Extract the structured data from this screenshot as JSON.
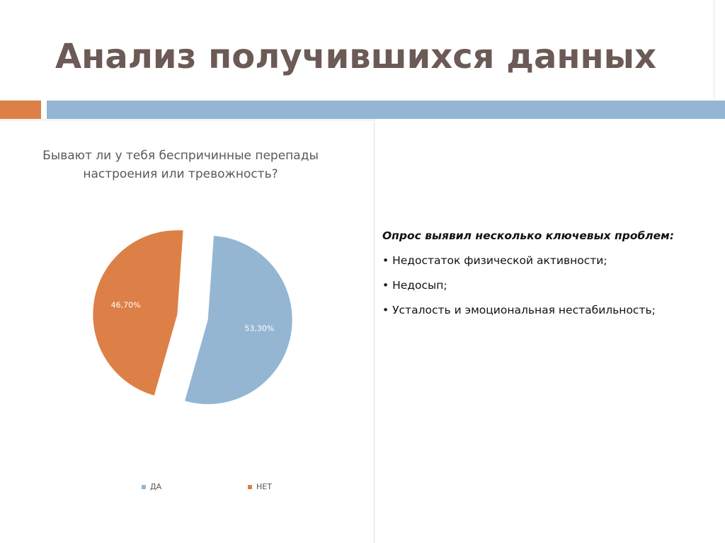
{
  "slide": {
    "title": "Анализ получившихся данных",
    "colors": {
      "accent": "#dd8047",
      "main_bar": "#94b6d2",
      "title": "#6b5a55"
    }
  },
  "findings": {
    "heading": "Опрос выявил несколько ключевых проблем:",
    "items": [
      "• Недостаток физической активности;",
      "• Недосып;",
      "• Усталость и эмоциональная нестабильность;"
    ]
  },
  "chart_data": {
    "type": "pie",
    "title": "Бывают ли у тебя беспричинные перепады настроения или тревожность?",
    "categories": [
      "ДА",
      "НЕТ"
    ],
    "values": [
      53.3,
      46.7
    ],
    "labels": [
      "53,30%",
      "46,70%"
    ],
    "colors": [
      "#94b6d2",
      "#dd8047"
    ],
    "exploded": true,
    "legend_position": "bottom"
  }
}
